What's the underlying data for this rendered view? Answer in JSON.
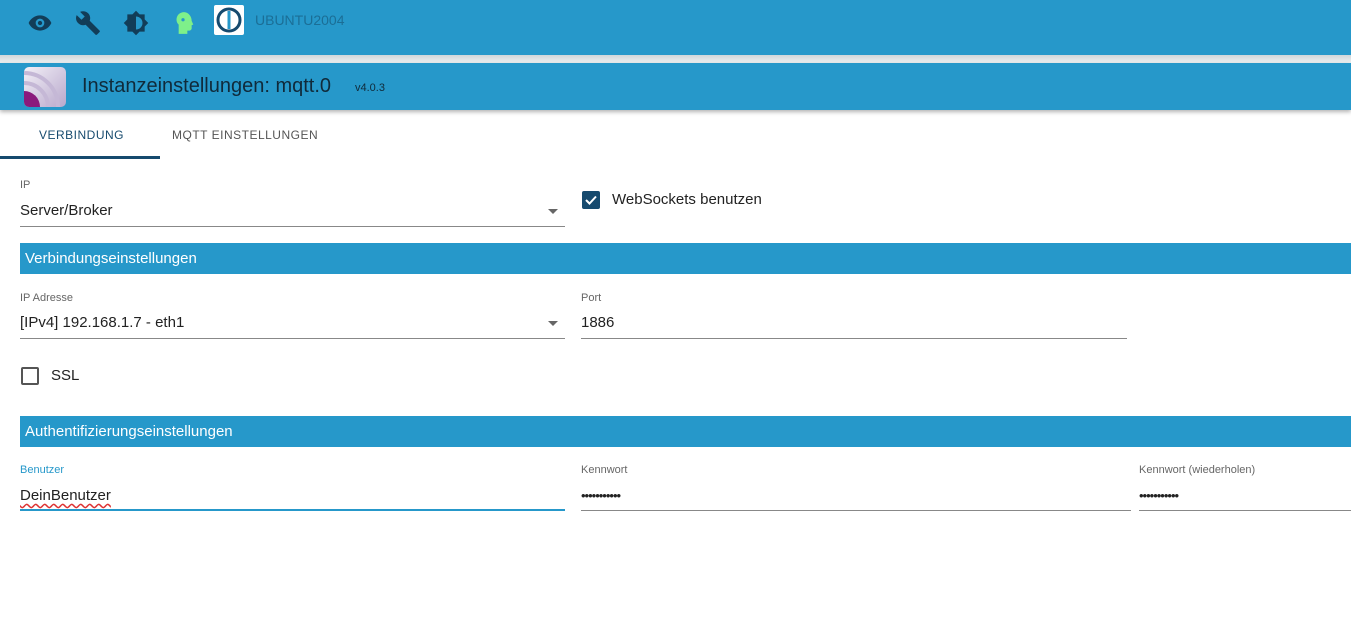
{
  "topbar": {
    "icons": [
      "eye-icon",
      "wrench-icon",
      "brightness-icon",
      "head-icon"
    ],
    "host": "UBUNTU2004"
  },
  "titlebar": {
    "title": "Instanzeinstellungen: mqtt.0",
    "version": "v4.0.3"
  },
  "tabs": [
    {
      "label": "VERBINDUNG",
      "active": true
    },
    {
      "label": "MQTT EINSTELLUNGEN",
      "active": false
    }
  ],
  "form": {
    "ip_label": "IP",
    "ip_value": "Server/Broker",
    "websockets_label": "WebSockets benutzen",
    "websockets_checked": true,
    "section1": "Verbindungseinstellungen",
    "ipaddr_label": "IP Adresse",
    "ipaddr_value": "[IPv4] 192.168.1.7 - eth1",
    "port_label": "Port",
    "port_value": "1886",
    "ssl_label": "SSL",
    "ssl_checked": false,
    "section2": "Authentifizierungseinstellungen",
    "user_label": "Benutzer",
    "user_value": "DeinBenutzer",
    "pass_label": "Kennwort",
    "pass_value": "•••••••••••",
    "pass2_label": "Kennwort (wiederholen)",
    "pass2_value": "•••••••••••"
  },
  "colors": {
    "accent": "#2698ca",
    "dark": "#164a6e"
  }
}
